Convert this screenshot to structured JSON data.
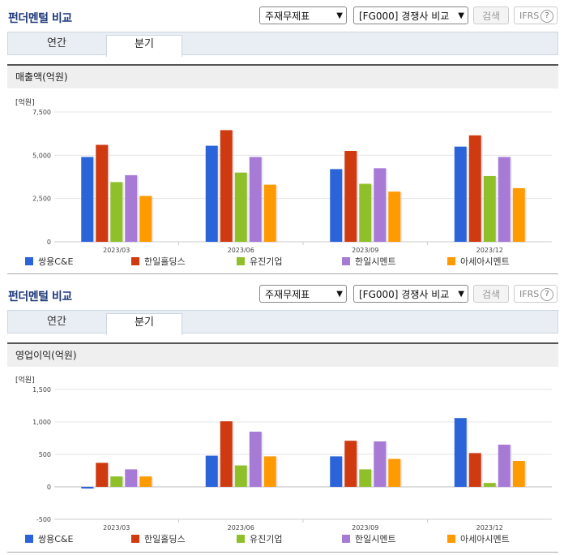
{
  "sections": [
    {
      "title": "펀더멘털 비교",
      "select1": "주재무제표",
      "select2": "[FG000] 경쟁사 비교",
      "search_label": "검색",
      "ifrs_label": "IFRS",
      "ifrs_help": "?",
      "tabs": [
        "연간",
        "분기"
      ],
      "metric_title": "매출액(억원)"
    },
    {
      "title": "펀더멘털 비교",
      "select1": "주재무제표",
      "select2": "[FG000] 경쟁사 비교",
      "search_label": "검색",
      "ifrs_label": "IFRS",
      "ifrs_help": "?",
      "tabs": [
        "연간",
        "분기"
      ],
      "metric_title": "영업이익(억원)"
    }
  ],
  "colors": [
    "#2b63d9",
    "#d03a10",
    "#8fc02a",
    "#a77ad6",
    "#ff9a00"
  ],
  "chart_data": [
    {
      "type": "bar",
      "unit_label": "[억원]",
      "categories": [
        "2023/03",
        "2023/06",
        "2023/09",
        "2023/12"
      ],
      "ylim": [
        0,
        7500
      ],
      "yticks": [
        0,
        2500,
        5000,
        7500
      ],
      "ytick_labels": [
        "0",
        "2,500",
        "5,000",
        "7,500"
      ],
      "legend_position": "bottom",
      "series": [
        {
          "name": "쌍용C&E",
          "values": [
            4900,
            5550,
            4200,
            5500
          ]
        },
        {
          "name": "한일홀딩스",
          "values": [
            5600,
            6450,
            5250,
            6150
          ]
        },
        {
          "name": "유진기업",
          "values": [
            3450,
            4000,
            3350,
            3800
          ]
        },
        {
          "name": "한일시멘트",
          "values": [
            3850,
            4900,
            4250,
            4900
          ]
        },
        {
          "name": "아세아시멘트",
          "values": [
            2650,
            3300,
            2900,
            3100
          ]
        }
      ]
    },
    {
      "type": "bar",
      "unit_label": "[억원]",
      "categories": [
        "2023/03",
        "2023/06",
        "2023/09",
        "2023/12"
      ],
      "ylim": [
        -500,
        1500
      ],
      "yticks": [
        -500,
        0,
        500,
        1000,
        1500
      ],
      "ytick_labels": [
        "-500",
        "0",
        "500",
        "1,000",
        "1,500"
      ],
      "legend_position": "bottom",
      "series": [
        {
          "name": "쌍용C&E",
          "values": [
            -25,
            480,
            470,
            1060
          ]
        },
        {
          "name": "한일홀딩스",
          "values": [
            370,
            1010,
            710,
            520
          ]
        },
        {
          "name": "유진기업",
          "values": [
            160,
            330,
            270,
            60
          ]
        },
        {
          "name": "한일시멘트",
          "values": [
            270,
            850,
            700,
            650
          ]
        },
        {
          "name": "아세아시멘트",
          "values": [
            160,
            470,
            430,
            400
          ]
        }
      ]
    }
  ]
}
